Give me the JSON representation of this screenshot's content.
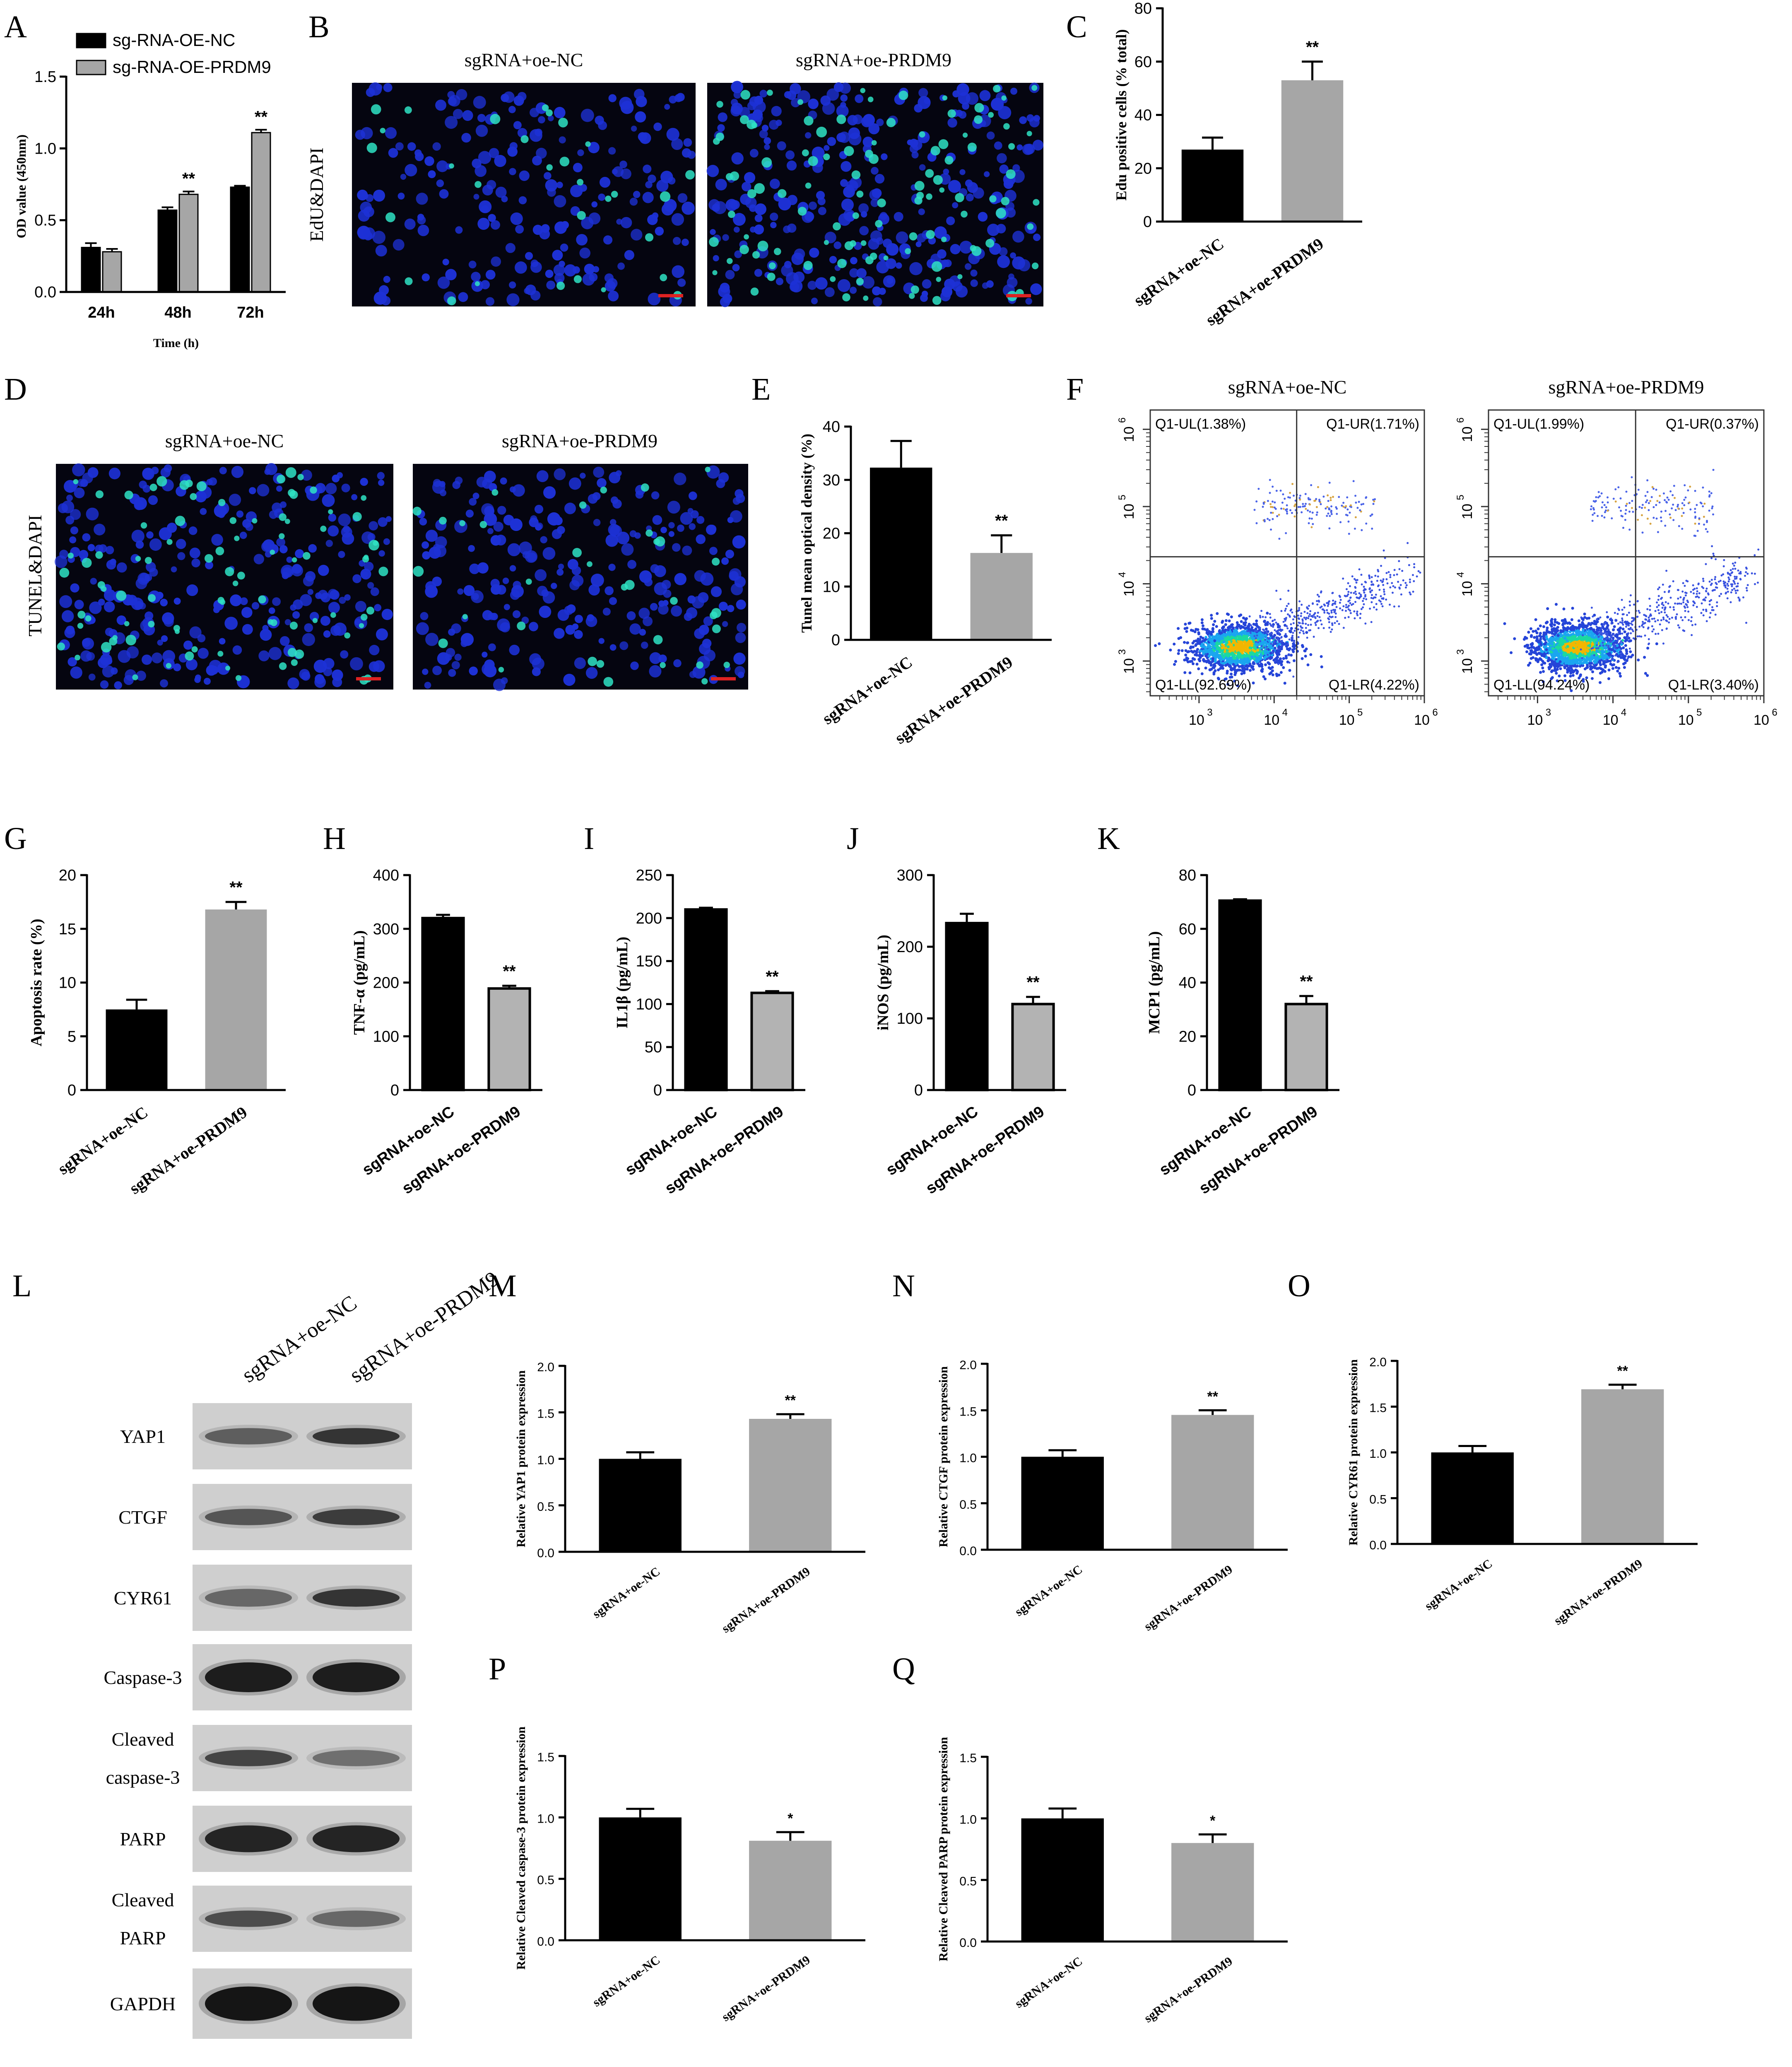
{
  "figure": {
    "panel_letters": [
      "A",
      "B",
      "C",
      "D",
      "E",
      "F",
      "G",
      "H",
      "I",
      "J",
      "K",
      "L",
      "M",
      "N",
      "O",
      "P",
      "Q"
    ]
  },
  "colors": {
    "nc": "#000000",
    "prdm9": "#a6a6a6",
    "prdm9_light": "#b3b3b3",
    "micro_bg": "#050510",
    "nuclei": "#1d31d6",
    "edu_green": "#2fe3c4"
  },
  "chart_data": [
    {
      "id": "A",
      "type": "bar",
      "categories": [
        "24h",
        "48h",
        "72h"
      ],
      "series": [
        {
          "name": "sg-RNA-OE-NC",
          "values": [
            0.31,
            0.57,
            0.73
          ],
          "errors": [
            0.03,
            0.02,
            0.01
          ]
        },
        {
          "name": "sg-RNA-OE-PRDM9",
          "values": [
            0.28,
            0.68,
            1.11
          ],
          "errors": [
            0.02,
            0.02,
            0.02
          ]
        }
      ],
      "xlabel": "Time (h)",
      "ylabel": "OD value (450nm)",
      "ylim": [
        0,
        1.5
      ],
      "yticks": [
        "0.0",
        "0.5",
        "1.0",
        "1.5"
      ],
      "annotations": [
        "",
        "**",
        "**"
      ],
      "legend": "top-left"
    },
    {
      "id": "C",
      "type": "bar",
      "categories": [
        "sgRNA+oe-NC",
        "sgRNA+oe-PRDM9"
      ],
      "values": [
        27,
        53
      ],
      "errors": [
        4.5,
        7
      ],
      "ylabel": "Edu positive cells (% total)",
      "ylim": [
        0,
        80
      ],
      "yticks": [
        "0",
        "20",
        "40",
        "60",
        "80"
      ],
      "annotation": "**"
    },
    {
      "id": "E",
      "type": "bar",
      "categories": [
        "sgRNA+oe-NC",
        "sgRNA+oe-PRDM9"
      ],
      "values": [
        32.3,
        16.3
      ],
      "errors": [
        5.0,
        3.3
      ],
      "ylabel": "Tunel mean optical density (%)",
      "ylim": [
        0,
        40
      ],
      "yticks": [
        "0",
        "10",
        "20",
        "30",
        "40"
      ],
      "annotation": "**"
    },
    {
      "id": "G",
      "type": "bar",
      "categories": [
        "sgRNA+oe-NC",
        "sgRNA+oe-PRDM9"
      ],
      "values": [
        7.5,
        16.8
      ],
      "errors": [
        0.9,
        0.7
      ],
      "ylabel": "Apoptosis rate (%)",
      "ylim": [
        0,
        20
      ],
      "yticks": [
        "0",
        "5",
        "10",
        "15",
        "20"
      ],
      "annotation": "**"
    },
    {
      "id": "H",
      "type": "bar",
      "categories": [
        "sgRNA+oe-NC",
        "sgRNA+oe-PRDM9"
      ],
      "values": [
        320,
        189
      ],
      "errors": [
        6,
        5
      ],
      "ylabel": "TNF-α (pg/mL)",
      "ylim": [
        0,
        400
      ],
      "yticks": [
        "0",
        "100",
        "200",
        "300",
        "400"
      ],
      "annotation": "**"
    },
    {
      "id": "I",
      "type": "bar",
      "categories": [
        "sgRNA+oe-NC",
        "sgRNA+oe-PRDM9"
      ],
      "values": [
        210,
        113
      ],
      "errors": [
        2,
        2
      ],
      "ylabel": "IL1β (pg/mL)",
      "ylim": [
        0,
        250
      ],
      "yticks": [
        "0",
        "50",
        "100",
        "150",
        "200",
        "250"
      ],
      "annotation": "**"
    },
    {
      "id": "J",
      "type": "bar",
      "categories": [
        "sgRNA+oe-NC",
        "sgRNA+oe-PRDM9"
      ],
      "values": [
        233,
        120
      ],
      "errors": [
        13,
        10
      ],
      "ylabel": "iNOS (pg/mL)",
      "ylim": [
        0,
        300
      ],
      "yticks": [
        "0",
        "100",
        "200",
        "300"
      ],
      "annotation": "**"
    },
    {
      "id": "K",
      "type": "bar",
      "categories": [
        "sgRNA+oe-NC",
        "sgRNA+oe-PRDM9"
      ],
      "values": [
        70.5,
        32
      ],
      "errors": [
        0.5,
        3
      ],
      "ylabel": "MCP1 (pg/mL)",
      "ylim": [
        0,
        80
      ],
      "yticks": [
        "0",
        "20",
        "40",
        "60",
        "80"
      ],
      "annotation": "**"
    },
    {
      "id": "M",
      "type": "bar",
      "categories": [
        "sgRNA+oe-NC",
        "sgRNA+oe-PRDM9"
      ],
      "values": [
        1.0,
        1.43
      ],
      "errors": [
        0.07,
        0.05
      ],
      "ylabel": "Relative YAP1 protein expression",
      "ylim": [
        0,
        2.0
      ],
      "yticks": [
        "0.0",
        "0.5",
        "1.0",
        "1.5",
        "2.0"
      ],
      "annotation": "**"
    },
    {
      "id": "N",
      "type": "bar",
      "categories": [
        "sgRNA+oe-NC",
        "sgRNA+oe-PRDM9"
      ],
      "values": [
        1.0,
        1.45
      ],
      "errors": [
        0.07,
        0.05
      ],
      "ylabel": "Relative CTGF protein expression",
      "ylim": [
        0,
        2.0
      ],
      "yticks": [
        "0.0",
        "0.5",
        "1.0",
        "1.5",
        "2.0"
      ],
      "annotation": "**"
    },
    {
      "id": "O",
      "type": "bar",
      "categories": [
        "sgRNA+oe-NC",
        "sgRNA+oe-PRDM9"
      ],
      "values": [
        1.0,
        1.69
      ],
      "errors": [
        0.07,
        0.05
      ],
      "ylabel": "Relative CYR61 protein expression",
      "ylim": [
        0,
        2.0
      ],
      "yticks": [
        "0.0",
        "0.5",
        "1.0",
        "1.5",
        "2.0"
      ],
      "annotation": "**"
    },
    {
      "id": "P",
      "type": "bar",
      "categories": [
        "sgRNA+oe-NC",
        "sgRNA+oe-PRDM9"
      ],
      "values": [
        1.0,
        0.81
      ],
      "errors": [
        0.07,
        0.07
      ],
      "ylabel": "Relative Cleaved caspase-3 protein expression",
      "ylim": [
        0,
        1.5
      ],
      "yticks": [
        "0.0",
        "0.5",
        "1.0",
        "1.5"
      ],
      "annotation": "*"
    },
    {
      "id": "Q",
      "type": "bar",
      "categories": [
        "sgRNA+oe-NC",
        "sgRNA+oe-PRDM9"
      ],
      "values": [
        1.0,
        0.8
      ],
      "errors": [
        0.08,
        0.07
      ],
      "ylabel": "Relative Cleaved PARP protein expression",
      "ylim": [
        0,
        1.5
      ],
      "yticks": [
        "0.0",
        "0.5",
        "1.0",
        "1.5"
      ],
      "annotation": "*"
    }
  ],
  "micrographs": {
    "edu": {
      "row_label": "EdU&DAPI",
      "titles": [
        "sgRNA+oe-NC",
        "sgRNA+oe-PRDM9"
      ]
    },
    "tunel": {
      "row_label": "TUNEL&DAPI",
      "titles": [
        "sgRNA+oe-NC",
        "sgRNA+oe-PRDM9"
      ]
    }
  },
  "flow": {
    "titles": [
      "sgRNA+oe-NC",
      "sgRNA+oe-PRDM9"
    ],
    "axis_ticks": [
      "10",
      "10",
      "10",
      "10"
    ],
    "axis_exps": [
      "3",
      "4",
      "5",
      "6"
    ],
    "plots": [
      {
        "UL": "Q1-UL(1.38%)",
        "UR": "Q1-UR(1.71%)",
        "LL": "Q1-LL(92.69%)",
        "LR": "Q1-LR(4.22%)"
      },
      {
        "UL": "Q1-UL(1.99%)",
        "UR": "Q1-UR(0.37%)",
        "LL": "Q1-LL(94.24%)",
        "LR": "Q1-LR(3.40%)"
      }
    ]
  },
  "western": {
    "lanes": [
      "sgRNA+oe-NC",
      "sgRNA+oe-PRDM9"
    ],
    "bands": [
      {
        "label_lines": [
          "YAP1"
        ]
      },
      {
        "label_lines": [
          "CTGF"
        ]
      },
      {
        "label_lines": [
          "CYR61"
        ]
      },
      {
        "label_lines": [
          "Caspase-3"
        ]
      },
      {
        "label_lines": [
          "Cleaved",
          "caspase-3"
        ]
      },
      {
        "label_lines": [
          "PARP"
        ]
      },
      {
        "label_lines": [
          "Cleaved",
          "PARP"
        ]
      },
      {
        "label_lines": [
          "GAPDH"
        ]
      }
    ]
  }
}
